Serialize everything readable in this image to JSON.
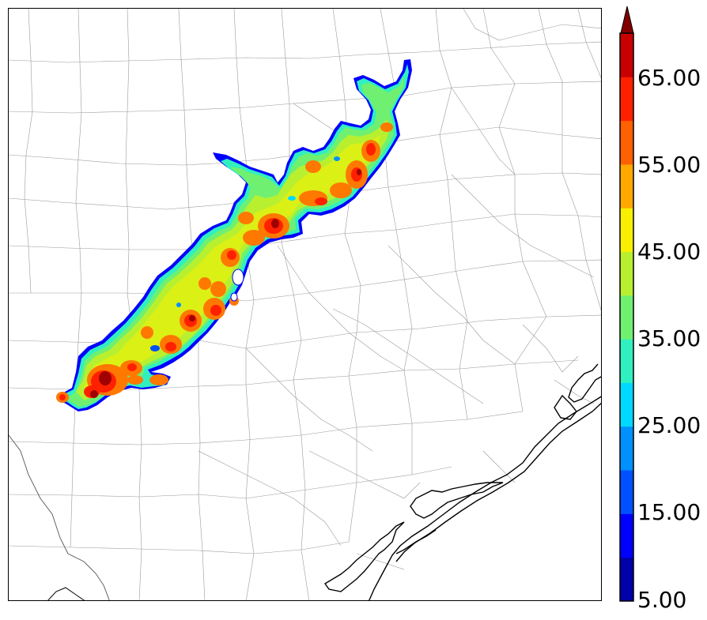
{
  "map": {
    "colorbar": {
      "tick_labels": [
        "5.00",
        "15.00",
        "25.00",
        "35.00",
        "45.00",
        "55.00",
        "65.00"
      ],
      "min": 5,
      "max": 70,
      "interval": 5,
      "extend": "max",
      "colors": [
        "#0000a8",
        "#0000ff",
        "#0050ff",
        "#0090ff",
        "#00d8ff",
        "#30f0c0",
        "#70f070",
        "#b8f030",
        "#f8f000",
        "#ffa800",
        "#ff6000",
        "#ff2000",
        "#c80000",
        "#800000"
      ]
    },
    "base_map": {
      "county_line_color": "#9a9a9a",
      "coastline_color": "#000000",
      "background": "#ffffff"
    },
    "field": {
      "description_colors": {
        "outline": "#0000ff"
      }
    }
  }
}
